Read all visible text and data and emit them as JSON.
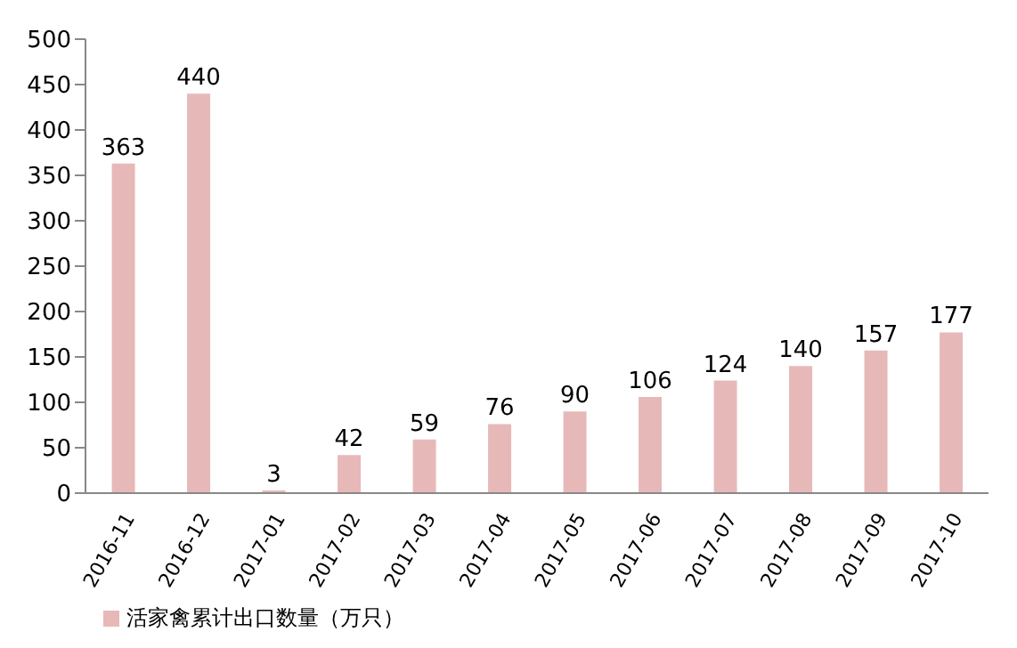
{
  "chart_data": {
    "type": "bar",
    "categories": [
      "2016-11",
      "2016-12",
      "2017-01",
      "2017-02",
      "2017-03",
      "2017-04",
      "2017-05",
      "2017-06",
      "2017-07",
      "2017-08",
      "2017-09",
      "2017-10"
    ],
    "series": [
      {
        "name": "活家禽累计出口数量（万只）",
        "color": "#e6b9b8",
        "values": [
          363,
          440,
          3,
          42,
          59,
          76,
          90,
          106,
          124,
          140,
          157,
          177
        ]
      }
    ],
    "ylim": [
      0,
      500
    ],
    "yticks": [
      0,
      50,
      100,
      150,
      200,
      250,
      300,
      350,
      400,
      450,
      500
    ],
    "grid": false,
    "legend": "bottom left",
    "data_labels": true
  }
}
